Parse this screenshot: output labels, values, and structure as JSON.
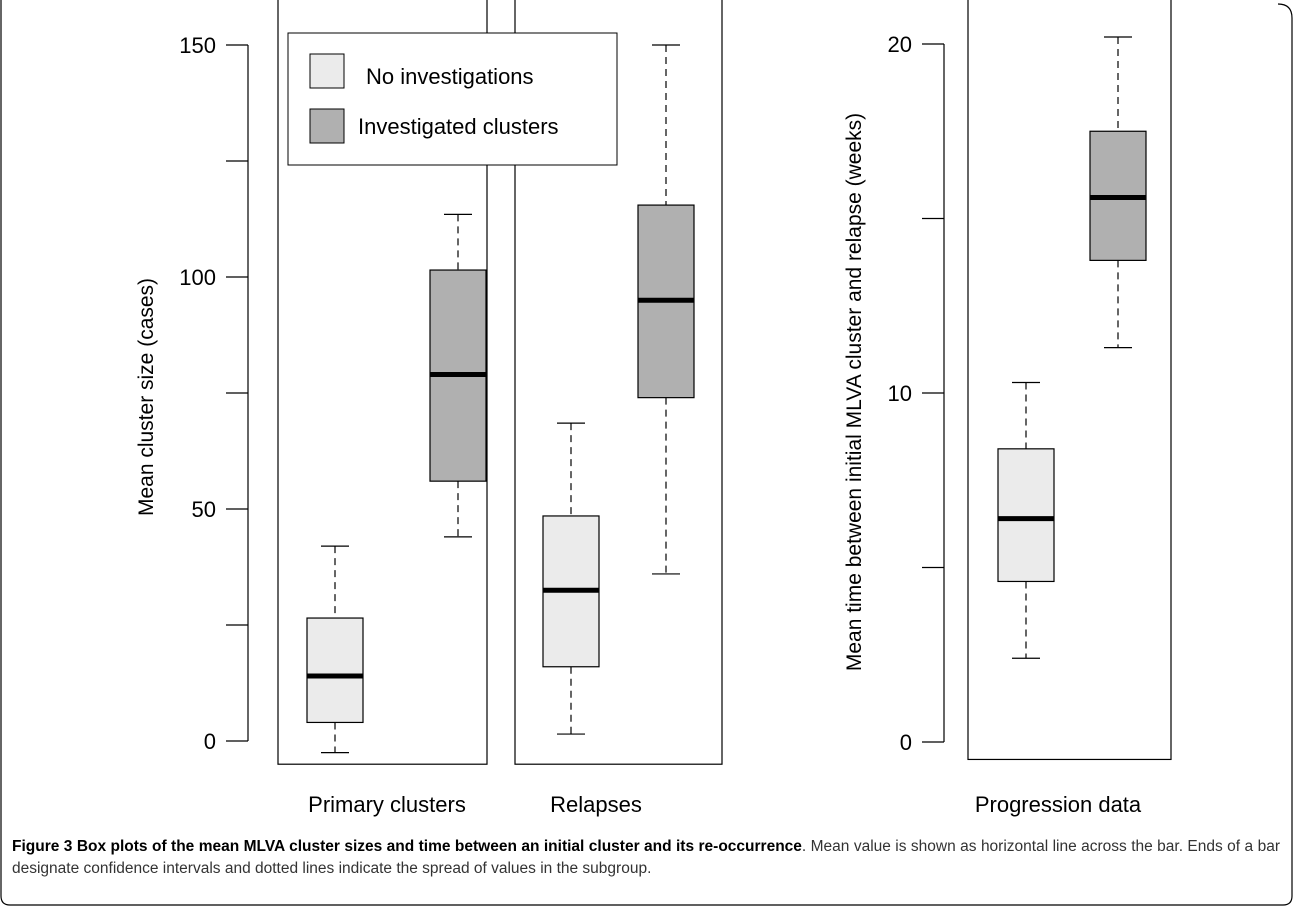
{
  "caption": {
    "label": "Figure 3",
    "title": "Box plots of the mean MLVA cluster sizes and time between an initial cluster and its re-occurrence",
    "text": ". Mean value is shown as horizontal line across the bar. Ends of a bar designate confidence intervals and dotted lines indicate the spread of values in the subgroup."
  },
  "colors": {
    "no_investigations": "#ebebeb",
    "investigated_clusters": "#b0b0b0",
    "median": "#000000",
    "frame": "#000000"
  },
  "legend": {
    "placement": "top-left",
    "items": [
      {
        "label": "No investigations",
        "color": "#ebebeb"
      },
      {
        "label": "Investigated clusters",
        "color": "#b0b0b0"
      }
    ]
  },
  "chart_data": [
    {
      "type": "box",
      "ylabel": "Mean cluster size (cases)",
      "ylim": [
        -5,
        150
      ],
      "yticks": [
        0,
        25,
        50,
        75,
        100,
        125,
        150
      ],
      "ytick_labels": [
        "0",
        "",
        "50",
        "",
        "100",
        "",
        "150"
      ],
      "panels": [
        {
          "xlabel": "Primary clusters",
          "boxes": [
            {
              "group": "No investigations",
              "whisker_low": -2.5,
              "q1": 4,
              "median": 14,
              "q3": 26.5,
              "whisker_high": 42
            },
            {
              "group": "Investigated clusters",
              "whisker_low": 44,
              "q1": 56,
              "median": 79,
              "q3": 101.5,
              "whisker_high": 113.5
            }
          ]
        },
        {
          "xlabel": "Relapses",
          "boxes": [
            {
              "group": "No investigations",
              "whisker_low": 1.5,
              "q1": 16,
              "median": 32.5,
              "q3": 48.5,
              "whisker_high": 68.5
            },
            {
              "group": "Investigated clusters",
              "whisker_low": 36,
              "q1": 74,
              "median": 95,
              "q3": 115.5,
              "whisker_high": 150
            }
          ]
        }
      ]
    },
    {
      "type": "box",
      "ylabel": "Mean time between initial MLVA cluster and relapse (weeks)",
      "ylim": [
        -0.5,
        21
      ],
      "yticks": [
        0,
        5,
        10,
        15,
        20
      ],
      "ytick_labels": [
        "0",
        "",
        "10",
        "",
        "20"
      ],
      "panels": [
        {
          "xlabel": "Progression data",
          "boxes": [
            {
              "group": "No investigations",
              "whisker_low": 2.4,
              "q1": 4.6,
              "median": 6.4,
              "q3": 8.4,
              "whisker_high": 10.3
            },
            {
              "group": "Investigated clusters",
              "whisker_low": 11.3,
              "q1": 13.8,
              "median": 15.6,
              "q3": 17.5,
              "whisker_high": 20.2
            }
          ]
        }
      ]
    }
  ]
}
